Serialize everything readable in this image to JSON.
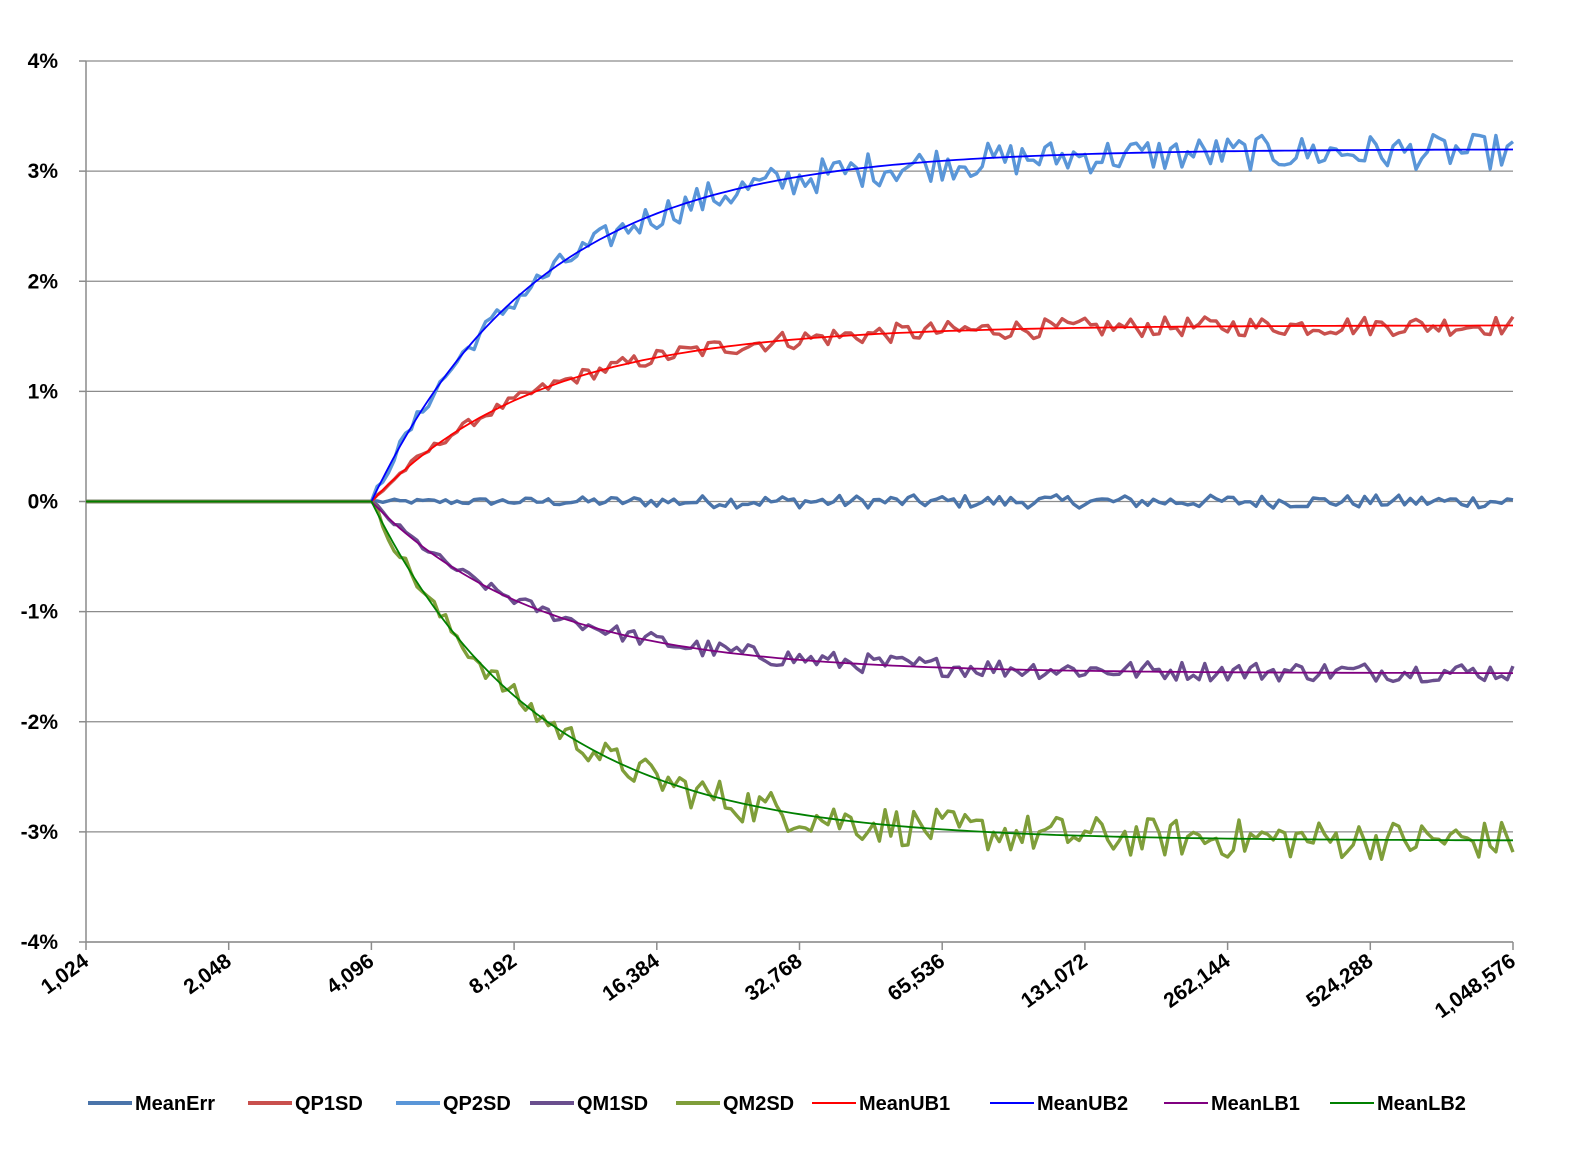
{
  "chart_data": {
    "type": "line",
    "title": "",
    "xlabel": "",
    "ylabel": "",
    "x_scale": "log2",
    "x_ticks": [
      "1,024",
      "2,048",
      "4,096",
      "8,192",
      "16,384",
      "32,768",
      "65,536",
      "131,072",
      "262,144",
      "524,288",
      "1,048,576"
    ],
    "x_tick_values": [
      1024,
      2048,
      4096,
      8192,
      16384,
      32768,
      65536,
      131072,
      262144,
      524288,
      1048576
    ],
    "y_ticks": [
      "4%",
      "3%",
      "2%",
      "1%",
      "0%",
      "-1%",
      "-2%",
      "-3%",
      "-4%"
    ],
    "y_tick_values": [
      4,
      3,
      2,
      1,
      0,
      -1,
      -2,
      -3,
      -4
    ],
    "ylim": [
      -4,
      4
    ],
    "xlim": [
      1024,
      1048576
    ],
    "grid": "horizontal",
    "legend_position": "bottom",
    "series": [
      {
        "name": "MeanErr",
        "color": "#4a74aa",
        "style": "noisy",
        "start_x": 4096,
        "asymptote": 0.0,
        "noise_amplitude": 0.06
      },
      {
        "name": "QP1SD",
        "color": "#c9504d",
        "style": "noisy",
        "start_x": 4096,
        "asymptote": 1.6,
        "noise_amplitude": 0.09
      },
      {
        "name": "QP2SD",
        "color": "#5a96d8",
        "style": "noisy",
        "start_x": 4096,
        "asymptote": 3.18,
        "noise_amplitude": 0.16
      },
      {
        "name": "QM1SD",
        "color": "#6a4f8e",
        "style": "noisy",
        "start_x": 4096,
        "asymptote": -1.55,
        "noise_amplitude": 0.09
      },
      {
        "name": "QM2SD",
        "color": "#7f9e3a",
        "style": "noisy",
        "start_x": 4096,
        "asymptote": -3.08,
        "noise_amplitude": 0.18
      },
      {
        "name": "MeanUB1",
        "color": "#ff0000",
        "style": "smooth",
        "start_x": 4096,
        "asymptote": 1.6
      },
      {
        "name": "MeanUB2",
        "color": "#0000ff",
        "style": "smooth",
        "start_x": 4096,
        "asymptote": 3.2
      },
      {
        "name": "MeanLB1",
        "color": "#800080",
        "style": "smooth",
        "start_x": 4096,
        "asymptote": -1.56
      },
      {
        "name": "MeanLB2",
        "color": "#008000",
        "style": "smooth",
        "start_x": 4096,
        "asymptote": -3.08
      }
    ]
  }
}
